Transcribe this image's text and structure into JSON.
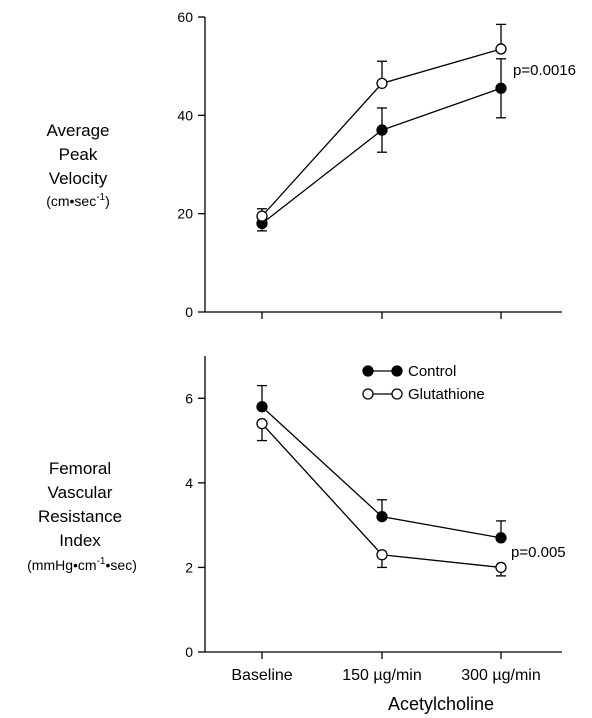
{
  "chart_data": [
    {
      "type": "line",
      "categories": [
        "Baseline",
        "150 µg/min",
        "300 µg/min"
      ],
      "ylabel": [
        "Average",
        "Peak",
        "Velocity"
      ],
      "ylabel_unit_base": "(cm•sec",
      "ylabel_unit_sup": "-1",
      "ylabel_unit_end": ")",
      "ylim": [
        0,
        60
      ],
      "yticks": [
        0,
        20,
        40,
        60
      ],
      "annotation": "p=0.0016",
      "series": [
        {
          "name": "Control",
          "marker": "filled",
          "values": [
            18,
            37,
            45.5
          ],
          "err_up": [
            1.5,
            4.5,
            6
          ],
          "err_down": [
            1.5,
            4.5,
            6
          ]
        },
        {
          "name": "Glutathione",
          "marker": "open",
          "values": [
            19.5,
            46.5,
            53.5
          ],
          "err_up": [
            1.5,
            4.5,
            5
          ],
          "err_down": [
            1.5,
            0,
            0
          ]
        }
      ]
    },
    {
      "type": "line",
      "categories": [
        "Baseline",
        "150 µg/min",
        "300 µg/min"
      ],
      "xlabel": "Acetylcholine",
      "ylabel": [
        "Femoral",
        "Vascular",
        "Resistance",
        "Index"
      ],
      "ylabel_unit_base": "(mmHg•cm",
      "ylabel_unit_sup": "-1",
      "ylabel_unit_end": "•sec)",
      "ylim": [
        0,
        7
      ],
      "yticks": [
        0,
        2,
        4,
        6
      ],
      "annotation": "p=0.005",
      "legend": {
        "position": "top-right",
        "entries": [
          "Control",
          "Glutathione"
        ]
      },
      "series": [
        {
          "name": "Control",
          "marker": "filled",
          "values": [
            5.8,
            3.2,
            2.7
          ],
          "err_up": [
            0.5,
            0.4,
            0.4
          ],
          "err_down": [
            0,
            0,
            0
          ]
        },
        {
          "name": "Glutathione",
          "marker": "open",
          "values": [
            5.4,
            2.3,
            2.0
          ],
          "err_up": [
            0,
            0,
            0
          ],
          "err_down": [
            0.4,
            0.3,
            0.2
          ]
        }
      ]
    }
  ]
}
